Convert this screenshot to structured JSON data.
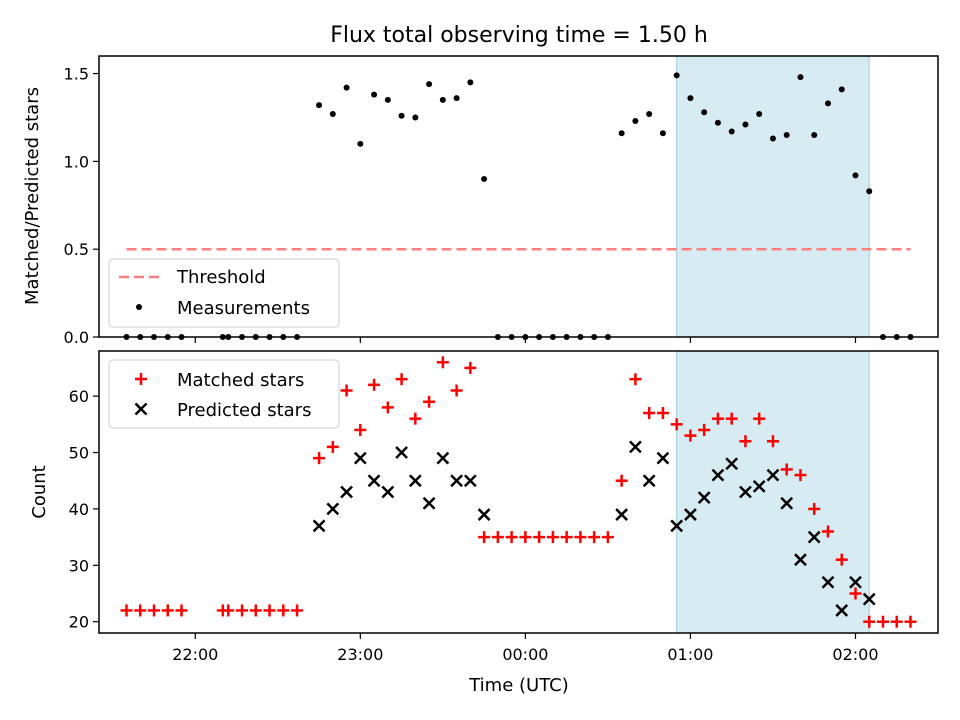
{
  "chart_data": [
    {
      "type": "scatter",
      "panel": "top",
      "title": "Flux total observing time = 1.50 h",
      "ylabel": "Matched/Predicted stars",
      "ylim": [
        0,
        1.6
      ],
      "yticks": [
        "0.0",
        "0.5",
        "1.0",
        "1.5"
      ],
      "xlim": [
        "21:25",
        "02:30"
      ],
      "grid": false,
      "legend": "lower left",
      "highlight_span": {
        "from": "00:55",
        "to": "02:05",
        "color": "#add8e6"
      },
      "threshold": {
        "name": "Threshold",
        "value": 0.5,
        "x_from": "21:35",
        "x_to": "02:20",
        "color": "#ff8080"
      },
      "series": [
        {
          "name": "Measurements",
          "marker": "dot",
          "color": "#000000",
          "points": [
            [
              "21:35",
              0
            ],
            [
              "21:40",
              0
            ],
            [
              "21:45",
              0
            ],
            [
              "21:50",
              0
            ],
            [
              "21:55",
              0
            ],
            [
              "22:10",
              0
            ],
            [
              "22:12",
              0
            ],
            [
              "22:17",
              0
            ],
            [
              "22:22",
              0
            ],
            [
              "22:27",
              0
            ],
            [
              "22:32",
              0
            ],
            [
              "22:37",
              0
            ],
            [
              "22:45",
              1.32
            ],
            [
              "22:50",
              1.27
            ],
            [
              "22:55",
              1.42
            ],
            [
              "23:00",
              1.1
            ],
            [
              "23:05",
              1.38
            ],
            [
              "23:10",
              1.35
            ],
            [
              "23:15",
              1.26
            ],
            [
              "23:20",
              1.25
            ],
            [
              "23:25",
              1.44
            ],
            [
              "23:30",
              1.35
            ],
            [
              "23:35",
              1.36
            ],
            [
              "23:40",
              1.45
            ],
            [
              "23:45",
              0.9
            ],
            [
              "23:50",
              0
            ],
            [
              "23:55",
              0
            ],
            [
              "00:00",
              0
            ],
            [
              "00:05",
              0
            ],
            [
              "00:10",
              0
            ],
            [
              "00:15",
              0
            ],
            [
              "00:20",
              0
            ],
            [
              "00:25",
              0
            ],
            [
              "00:30",
              0
            ],
            [
              "00:35",
              1.16
            ],
            [
              "00:40",
              1.23
            ],
            [
              "00:45",
              1.27
            ],
            [
              "00:50",
              1.16
            ],
            [
              "00:55",
              1.49
            ],
            [
              "01:00",
              1.36
            ],
            [
              "01:05",
              1.28
            ],
            [
              "01:10",
              1.22
            ],
            [
              "01:15",
              1.17
            ],
            [
              "01:20",
              1.21
            ],
            [
              "01:25",
              1.27
            ],
            [
              "01:30",
              1.13
            ],
            [
              "01:35",
              1.15
            ],
            [
              "01:40",
              1.48
            ],
            [
              "01:45",
              1.15
            ],
            [
              "01:50",
              1.33
            ],
            [
              "01:55",
              1.41
            ],
            [
              "02:00",
              0.92
            ],
            [
              "02:05",
              0.83
            ],
            [
              "02:10",
              0
            ],
            [
              "02:15",
              0
            ],
            [
              "02:20",
              0
            ]
          ]
        }
      ]
    },
    {
      "type": "scatter",
      "panel": "bottom",
      "ylabel": "Count",
      "xlabel": "Time (UTC)",
      "ylim": [
        18,
        68
      ],
      "yticks": [
        "20",
        "30",
        "40",
        "50",
        "60"
      ],
      "xticks": [
        "22:00",
        "23:00",
        "00:00",
        "01:00",
        "02:00"
      ],
      "xlim": [
        "21:25",
        "02:30"
      ],
      "grid": false,
      "legend": "upper left",
      "highlight_span": {
        "from": "00:55",
        "to": "02:05",
        "color": "#add8e6"
      },
      "series": [
        {
          "name": "Matched stars",
          "marker": "plus",
          "color": "#ff0000",
          "points": [
            [
              "21:35",
              22
            ],
            [
              "21:40",
              22
            ],
            [
              "21:45",
              22
            ],
            [
              "21:50",
              22
            ],
            [
              "21:55",
              22
            ],
            [
              "22:10",
              22
            ],
            [
              "22:12",
              22
            ],
            [
              "22:17",
              22
            ],
            [
              "22:22",
              22
            ],
            [
              "22:27",
              22
            ],
            [
              "22:32",
              22
            ],
            [
              "22:37",
              22
            ],
            [
              "22:45",
              49
            ],
            [
              "22:50",
              51
            ],
            [
              "22:55",
              61
            ],
            [
              "23:00",
              54
            ],
            [
              "23:05",
              62
            ],
            [
              "23:10",
              58
            ],
            [
              "23:15",
              63
            ],
            [
              "23:20",
              56
            ],
            [
              "23:25",
              59
            ],
            [
              "23:30",
              66
            ],
            [
              "23:35",
              61
            ],
            [
              "23:40",
              65
            ],
            [
              "23:45",
              35
            ],
            [
              "23:50",
              35
            ],
            [
              "23:55",
              35
            ],
            [
              "00:00",
              35
            ],
            [
              "00:05",
              35
            ],
            [
              "00:10",
              35
            ],
            [
              "00:15",
              35
            ],
            [
              "00:20",
              35
            ],
            [
              "00:25",
              35
            ],
            [
              "00:30",
              35
            ],
            [
              "00:35",
              45
            ],
            [
              "00:40",
              63
            ],
            [
              "00:45",
              57
            ],
            [
              "00:50",
              57
            ],
            [
              "00:55",
              55
            ],
            [
              "01:00",
              53
            ],
            [
              "01:05",
              54
            ],
            [
              "01:10",
              56
            ],
            [
              "01:15",
              56
            ],
            [
              "01:20",
              52
            ],
            [
              "01:25",
              56
            ],
            [
              "01:30",
              52
            ],
            [
              "01:35",
              47
            ],
            [
              "01:40",
              46
            ],
            [
              "01:45",
              40
            ],
            [
              "01:50",
              36
            ],
            [
              "01:55",
              31
            ],
            [
              "02:00",
              25
            ],
            [
              "02:05",
              20
            ],
            [
              "02:10",
              20
            ],
            [
              "02:15",
              20
            ],
            [
              "02:20",
              20
            ]
          ]
        },
        {
          "name": "Predicted stars",
          "marker": "x",
          "color": "#000000",
          "points": [
            [
              "22:45",
              37
            ],
            [
              "22:50",
              40
            ],
            [
              "22:55",
              43
            ],
            [
              "23:00",
              49
            ],
            [
              "23:05",
              45
            ],
            [
              "23:10",
              43
            ],
            [
              "23:15",
              50
            ],
            [
              "23:20",
              45
            ],
            [
              "23:25",
              41
            ],
            [
              "23:30",
              49
            ],
            [
              "23:35",
              45
            ],
            [
              "23:40",
              45
            ],
            [
              "23:45",
              39
            ],
            [
              "00:35",
              39
            ],
            [
              "00:40",
              51
            ],
            [
              "00:45",
              45
            ],
            [
              "00:50",
              49
            ],
            [
              "00:55",
              37
            ],
            [
              "01:00",
              39
            ],
            [
              "01:05",
              42
            ],
            [
              "01:10",
              46
            ],
            [
              "01:15",
              48
            ],
            [
              "01:20",
              43
            ],
            [
              "01:25",
              44
            ],
            [
              "01:30",
              46
            ],
            [
              "01:35",
              41
            ],
            [
              "01:40",
              31
            ],
            [
              "01:45",
              35
            ],
            [
              "01:50",
              27
            ],
            [
              "01:55",
              22
            ],
            [
              "02:00",
              27
            ],
            [
              "02:05",
              24
            ]
          ]
        }
      ]
    }
  ]
}
